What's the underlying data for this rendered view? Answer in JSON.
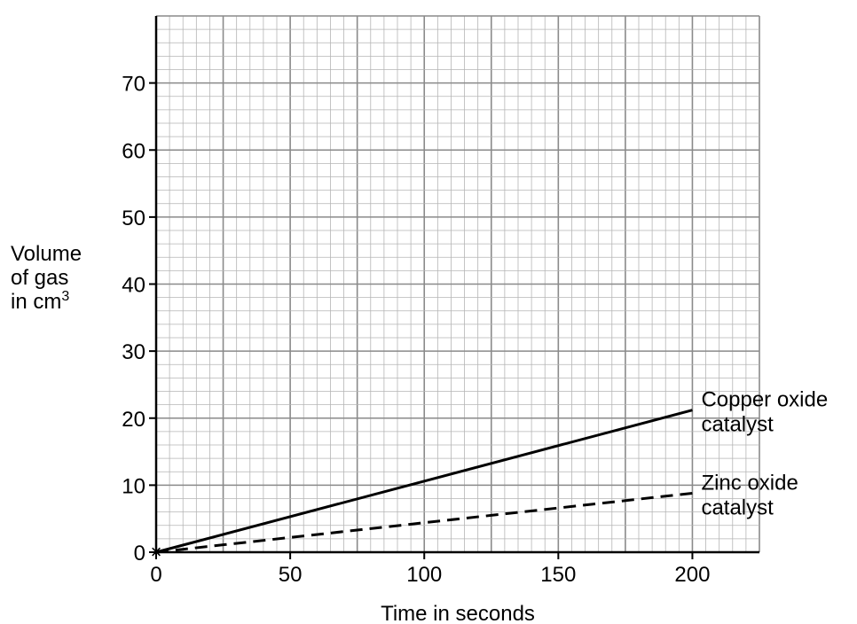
{
  "chart_data": {
    "type": "line",
    "xlabel": "Time in seconds",
    "ylabel": {
      "lines": [
        "Volume",
        "of gas",
        "in cm"
      ],
      "superscript": "3"
    },
    "xlim": [
      0,
      225
    ],
    "ylim": [
      0,
      80
    ],
    "x_ticks": [
      0,
      50,
      100,
      150,
      200
    ],
    "y_ticks": [
      0,
      10,
      20,
      30,
      40,
      50,
      60,
      70
    ],
    "grid": true,
    "grid_major_x": 25,
    "grid_major_y": 10,
    "grid_minor_x": 5,
    "grid_minor_y": 2,
    "origin_marker": "×",
    "series": [
      {
        "name": "Copper oxide catalyst",
        "label_lines": [
          "Copper oxide",
          "catalyst"
        ],
        "style": "solid",
        "color": "#000000",
        "points": [
          [
            0,
            0
          ],
          [
            200,
            21.2
          ]
        ]
      },
      {
        "name": "Zinc oxide catalyst",
        "label_lines": [
          "Zinc oxide",
          "catalyst"
        ],
        "style": "dashed",
        "color": "#000000",
        "points": [
          [
            0,
            0
          ],
          [
            200,
            8.8
          ]
        ]
      }
    ]
  }
}
